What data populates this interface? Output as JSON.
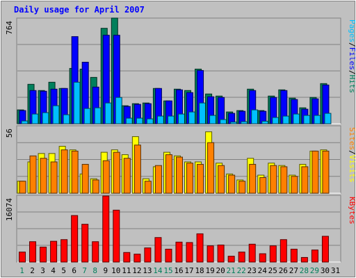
{
  "chart_data": [
    {
      "type": "bar",
      "title": "Daily usage for April 2007",
      "panel": "hits-files-pages",
      "ymax_label": "764",
      "right_labels": [
        {
          "text": "Pages",
          "color": "#00c0ff"
        },
        {
          "text": "/",
          "color": "#000000"
        },
        {
          "text": "Files",
          "color": "#0000ff"
        },
        {
          "text": "/",
          "color": "#000000"
        },
        {
          "text": "Hits",
          "color": "#00805c"
        }
      ],
      "categories": [
        "1",
        "2",
        "3",
        "4",
        "5",
        "6",
        "7",
        "8",
        "9",
        "10",
        "11",
        "12",
        "13",
        "14",
        "15",
        "16",
        "17",
        "18",
        "19",
        "20",
        "21",
        "22",
        "23",
        "24",
        "25",
        "26",
        "27",
        "28",
        "29",
        "30",
        "31"
      ],
      "weekend_days": [
        "1",
        "7",
        "8",
        "14",
        "15",
        "21",
        "22",
        "28",
        "29"
      ],
      "ylim": [
        0,
        764
      ],
      "series": [
        {
          "name": "Hits",
          "color": "#00805c",
          "values": [
            100,
            285,
            240,
            300,
            255,
            400,
            395,
            335,
            690,
            764,
            130,
            145,
            150,
            255,
            165,
            250,
            240,
            395,
            215,
            200,
            85,
            95,
            250,
            95,
            200,
            245,
            185,
            115,
            190,
            290,
            0
          ]
        },
        {
          "name": "Files",
          "color": "#0000ff",
          "values": [
            95,
            240,
            235,
            250,
            255,
            630,
            445,
            265,
            640,
            640,
            125,
            140,
            145,
            255,
            165,
            245,
            225,
            385,
            195,
            190,
            75,
            90,
            240,
            90,
            190,
            240,
            175,
            105,
            180,
            280,
            0
          ]
        },
        {
          "name": "Pages",
          "color": "#00c0ff",
          "values": [
            20,
            70,
            80,
            130,
            65,
            300,
            110,
            115,
            150,
            190,
            40,
            40,
            35,
            55,
            55,
            70,
            85,
            150,
            60,
            30,
            12,
            15,
            100,
            18,
            45,
            55,
            70,
            60,
            60,
            75,
            0
          ]
        }
      ]
    },
    {
      "type": "bar",
      "panel": "visits-sites",
      "ymax_label": "56",
      "right_labels": [
        {
          "text": "Sites",
          "color": "#ff8000"
        },
        {
          "text": "/",
          "color": "#000000"
        },
        {
          "text": "Visits",
          "color": "#ffff00"
        }
      ],
      "categories": [
        "1",
        "2",
        "3",
        "4",
        "5",
        "6",
        "7",
        "8",
        "9",
        "10",
        "11",
        "12",
        "13",
        "14",
        "15",
        "16",
        "17",
        "18",
        "19",
        "20",
        "21",
        "22",
        "23",
        "24",
        "25",
        "26",
        "27",
        "28",
        "29",
        "30",
        "31"
      ],
      "ylim": [
        0,
        56
      ],
      "series": [
        {
          "name": "Visits",
          "color": "#ffff00",
          "values": [
            10,
            26,
            33,
            33,
            39,
            36,
            16,
            12,
            34,
            36,
            32,
            47,
            12,
            22,
            34,
            31,
            26,
            26,
            51,
            25,
            16,
            11,
            29,
            15,
            25,
            23,
            15,
            24,
            35,
            36,
            0
          ]
        },
        {
          "name": "Sites",
          "color": "#ff8000",
          "values": [
            10,
            31,
            29,
            26,
            36,
            35,
            24,
            11,
            27,
            34,
            29,
            40,
            10,
            23,
            32,
            30,
            25,
            24,
            42,
            23,
            15,
            10,
            24,
            13,
            23,
            22,
            14,
            22,
            35,
            35,
            0
          ]
        }
      ]
    },
    {
      "type": "bar",
      "panel": "kbytes",
      "ymax_label": "16074",
      "right_labels": [
        {
          "text": "KBytes",
          "color": "#ff0000"
        }
      ],
      "categories": [
        "1",
        "2",
        "3",
        "4",
        "5",
        "6",
        "7",
        "8",
        "9",
        "10",
        "11",
        "12",
        "13",
        "14",
        "15",
        "16",
        "17",
        "18",
        "19",
        "20",
        "21",
        "22",
        "23",
        "24",
        "25",
        "26",
        "27",
        "28",
        "29",
        "30",
        "31"
      ],
      "ylim": [
        0,
        16074
      ],
      "series": [
        {
          "name": "KBytes",
          "color": "#ff0000",
          "values": [
            2400,
            4900,
            3600,
            5000,
            5400,
            11200,
            9100,
            4900,
            15900,
            12500,
            2300,
            1900,
            3400,
            5900,
            3100,
            4800,
            4700,
            6800,
            3900,
            4100,
            1400,
            2400,
            4300,
            2000,
            3900,
            5400,
            3100,
            1100,
            2900,
            6200,
            0
          ]
        }
      ]
    }
  ]
}
